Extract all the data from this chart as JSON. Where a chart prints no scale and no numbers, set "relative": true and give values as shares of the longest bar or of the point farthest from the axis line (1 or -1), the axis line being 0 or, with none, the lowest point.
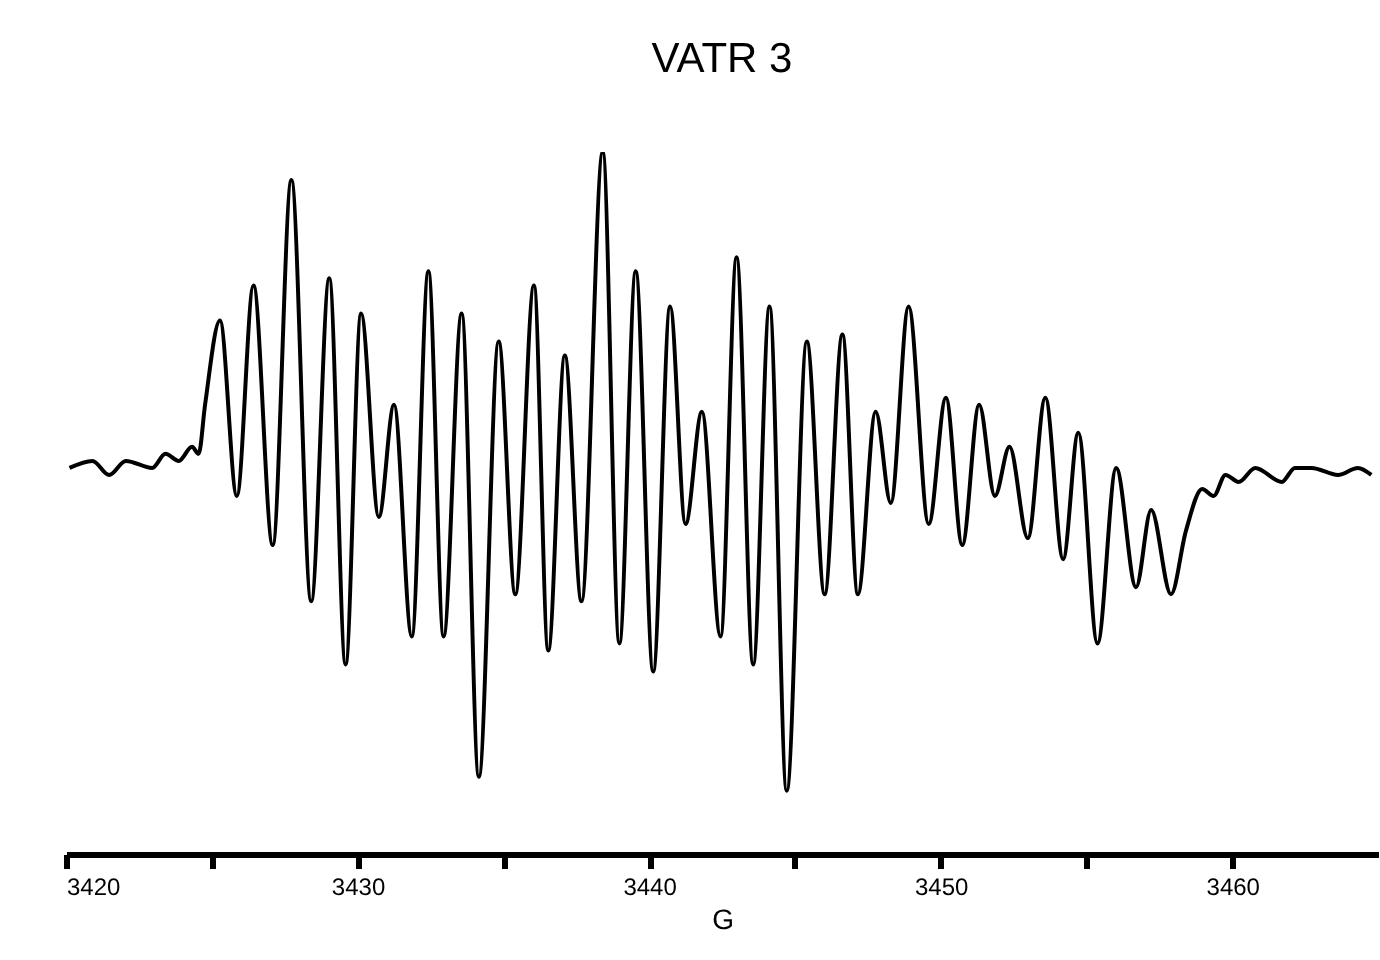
{
  "chart_data": {
    "type": "line",
    "title": "VATR 3",
    "xlabel": "G",
    "relative": true,
    "xlim": [
      3420,
      3465
    ],
    "xticks": [
      3420,
      {
        "value": 3425,
        "label": null
      },
      3430,
      {
        "value": 3435,
        "label": null
      },
      3440,
      {
        "value": 3445,
        "label": null
      },
      3450,
      {
        "value": 3455,
        "label": null
      },
      3460
    ],
    "x": [
      3420.12,
      3420.91,
      3421.48,
      3422.05,
      3422.96,
      3423.41,
      3423.87,
      3424.32,
      3424.55,
      3424.77,
      3425.28,
      3425.86,
      3426.43,
      3427.09,
      3427.73,
      3428.41,
      3429.03,
      3429.59,
      3430.12,
      3430.73,
      3431.25,
      3431.86,
      3432.43,
      3432.95,
      3433.57,
      3434.16,
      3434.84,
      3435.41,
      3436.05,
      3436.54,
      3437.11,
      3437.68,
      3438.41,
      3438.98,
      3439.54,
      3440.14,
      3440.72,
      3441.25,
      3441.81,
      3442.45,
      3443.0,
      3443.57,
      3444.13,
      3444.72,
      3445.41,
      3446.02,
      3446.63,
      3447.16,
      3447.77,
      3448.29,
      3448.9,
      3449.59,
      3450.18,
      3450.74,
      3451.32,
      3451.86,
      3452.36,
      3452.99,
      3453.59,
      3454.2,
      3454.72,
      3455.38,
      3456.02,
      3456.7,
      3457.22,
      3457.9,
      3458.41,
      3458.97,
      3459.36,
      3459.77,
      3460.22,
      3460.79,
      3461.7,
      3462.15,
      3462.72,
      3463.63,
      3464.31,
      3464.77
    ],
    "series": [
      {
        "color": "#000000",
        "values": [
          0.55,
          0.56,
          0.54,
          0.56,
          0.55,
          0.57,
          0.56,
          0.58,
          0.57,
          0.64,
          0.76,
          0.51,
          0.81,
          0.44,
          0.96,
          0.36,
          0.82,
          0.27,
          0.77,
          0.48,
          0.64,
          0.31,
          0.83,
          0.31,
          0.77,
          0.11,
          0.73,
          0.37,
          0.81,
          0.29,
          0.71,
          0.36,
          1.0,
          0.3,
          0.83,
          0.26,
          0.78,
          0.47,
          0.63,
          0.31,
          0.85,
          0.27,
          0.78,
          0.09,
          0.73,
          0.37,
          0.74,
          0.37,
          0.63,
          0.5,
          0.78,
          0.47,
          0.65,
          0.44,
          0.64,
          0.51,
          0.58,
          0.45,
          0.65,
          0.42,
          0.6,
          0.3,
          0.55,
          0.38,
          0.49,
          0.37,
          0.46,
          0.52,
          0.51,
          0.54,
          0.53,
          0.55,
          0.53,
          0.55,
          0.55,
          0.54,
          0.55,
          0.54
        ]
      }
    ]
  }
}
